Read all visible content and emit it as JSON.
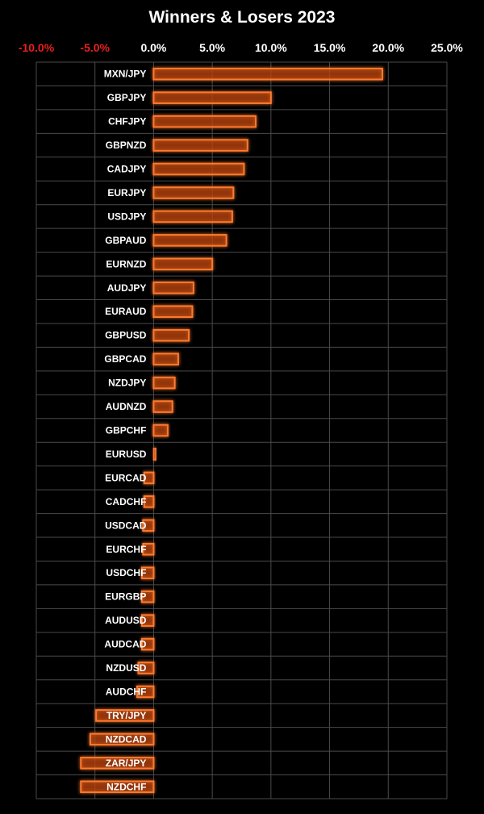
{
  "chart_data": {
    "type": "bar",
    "orientation": "horizontal",
    "title": "Winners & Losers 2023",
    "xlim": [
      -10,
      25
    ],
    "x_ticks": [
      {
        "value": -10,
        "label": "-10.0%"
      },
      {
        "value": -5,
        "label": "-5.0%"
      },
      {
        "value": 0,
        "label": "0.0%"
      },
      {
        "value": 5,
        "label": "5.0%"
      },
      {
        "value": 10,
        "label": "10.0%"
      },
      {
        "value": 15,
        "label": "15.0%"
      },
      {
        "value": 20,
        "label": "20.0%"
      },
      {
        "value": 25,
        "label": "25.0%"
      }
    ],
    "grid": true,
    "categories": [
      "MXN/JPY",
      "GBPJPY",
      "CHFJPY",
      "GBPNZD",
      "CADJPY",
      "EURJPY",
      "USDJPY",
      "GBPAUD",
      "EURNZD",
      "AUDJPY",
      "EURAUD",
      "GBPUSD",
      "GBPCAD",
      "NZDJPY",
      "AUDNZD",
      "GBPCHF",
      "EURUSD",
      "EURCAD",
      "CADCHF",
      "USDCAD",
      "EURCHF",
      "USDCHF",
      "EURGBP",
      "AUDUSD",
      "AUDCAD",
      "NZDUSD",
      "AUDCHF",
      "TRY/JPY",
      "NZDCAD",
      "ZAR/JPY",
      "NZDCHF"
    ],
    "values": [
      19.5,
      10.0,
      8.7,
      8.0,
      7.7,
      6.8,
      6.7,
      6.2,
      5.0,
      3.4,
      3.3,
      3.0,
      2.1,
      1.8,
      1.6,
      1.2,
      0.2,
      -0.8,
      -0.8,
      -0.9,
      -0.9,
      -1.0,
      -1.0,
      -1.0,
      -1.0,
      -1.3,
      -1.4,
      -4.9,
      -5.4,
      -6.2,
      -6.2
    ],
    "colors": {
      "background": "#000000",
      "bar_fill": "#b8420c",
      "bar_stroke": "#ff7a2e",
      "grid": "#4a4a4a",
      "positive_tick": "#ffffff",
      "negative_tick": "#e8201a",
      "category_label": "#ffffff",
      "title": "#ffffff"
    }
  }
}
